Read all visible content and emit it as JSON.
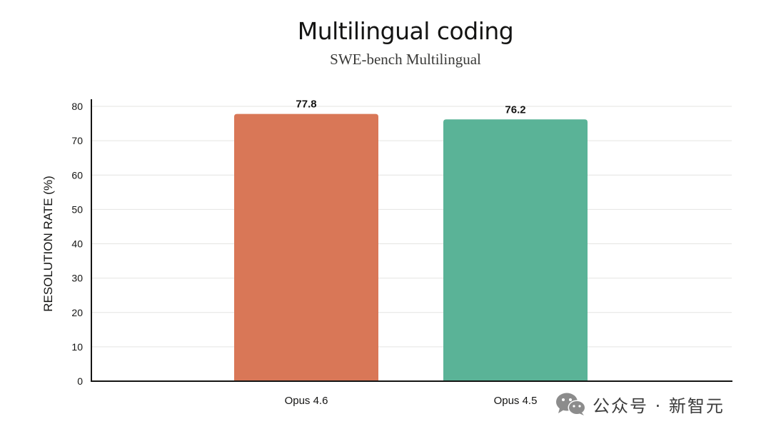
{
  "chart_data": {
    "type": "bar",
    "title": "Multilingual coding",
    "subtitle": "SWE-bench Multilingual",
    "xlabel": "",
    "ylabel": "RESOLUTION RATE (%)",
    "categories": [
      "Opus 4.6",
      "Opus 4.5"
    ],
    "values": [
      77.8,
      76.2
    ],
    "data_labels": [
      "77.8",
      "76.2"
    ],
    "colors": [
      "#d97757",
      "#5ab397"
    ],
    "ylim": [
      0,
      80
    ],
    "yticks": [
      0,
      10,
      20,
      30,
      40,
      50,
      60,
      70,
      80
    ],
    "grid": true,
    "legend": "none"
  },
  "watermark": {
    "icon": "wechat-icon",
    "text": "公众号 · 新智元"
  }
}
